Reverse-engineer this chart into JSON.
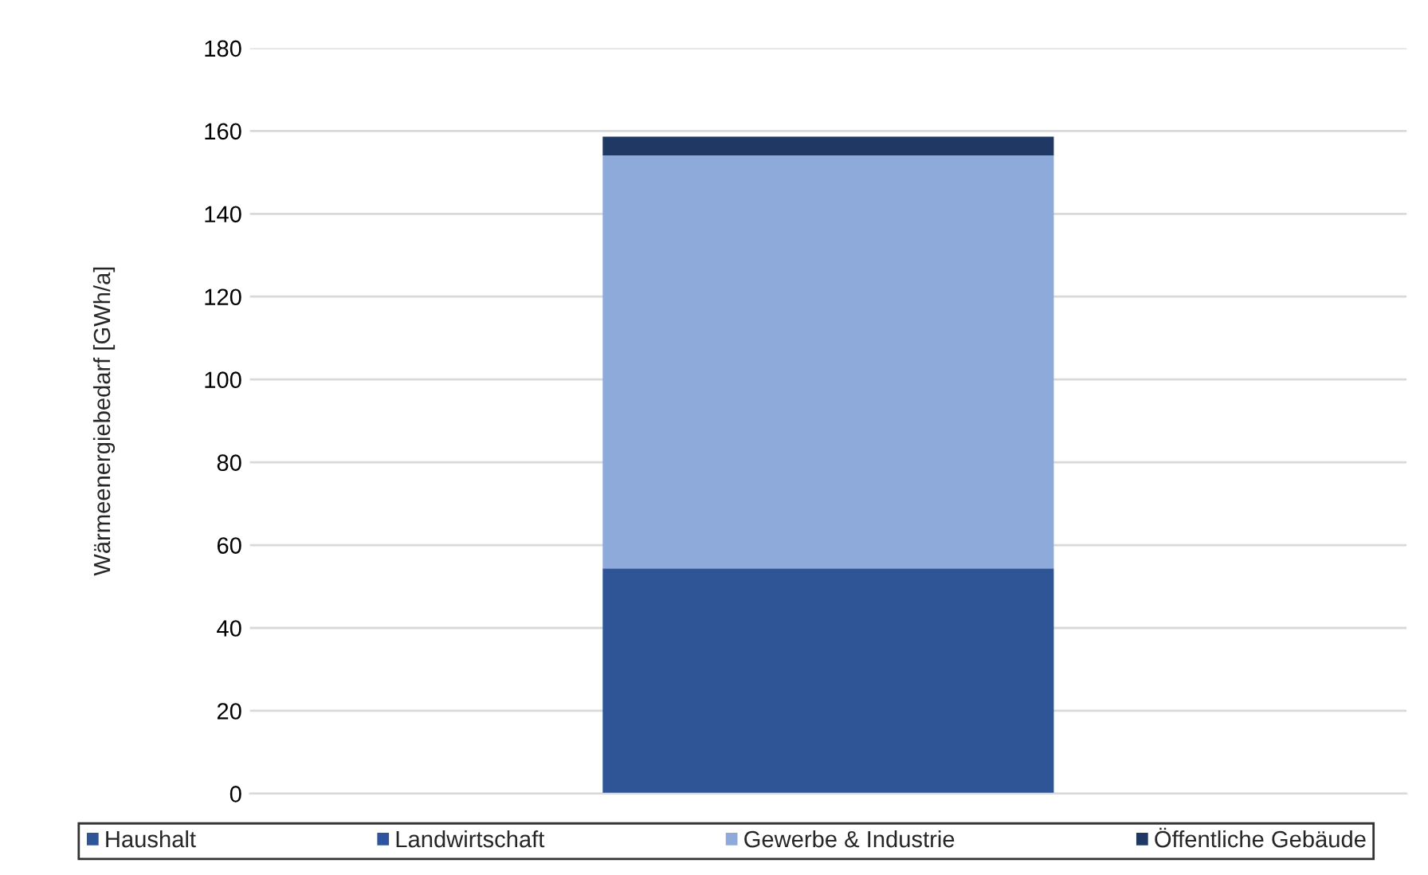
{
  "chart_data": {
    "type": "bar",
    "stacked": true,
    "ylabel": "Wärmeenergiebedarf [GWh/a]",
    "categories": [
      null
    ],
    "series": [
      {
        "name": "Haushalt",
        "color": "#2f5597",
        "values": [
          54.4
        ]
      },
      {
        "name": "Landwirtschaft",
        "color": "#2e54a0",
        "values": [
          0
        ]
      },
      {
        "name": "Gewerbe & Industrie",
        "color": "#8eaadb",
        "values": [
          99.7
        ]
      },
      {
        "name": "Öffentliche Gebäude",
        "color": "#1f3864",
        "values": [
          4.5
        ]
      }
    ],
    "ylim": [
      0,
      180
    ],
    "yticks": [
      0,
      20,
      40,
      60,
      80,
      100,
      120,
      140,
      160,
      180
    ],
    "grid": "y",
    "legend": "bottom"
  }
}
